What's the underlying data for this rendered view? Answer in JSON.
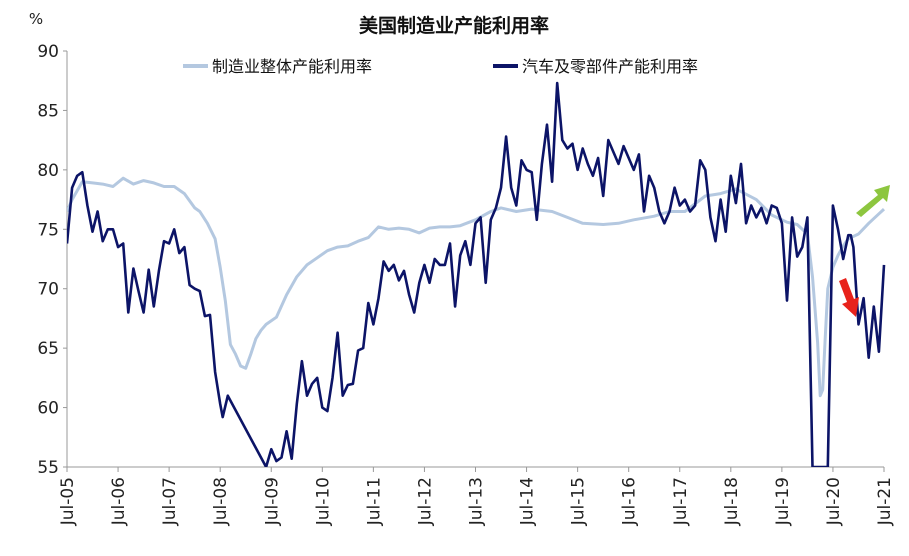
{
  "chart_data": {
    "type": "line",
    "title": "美国制造业产能利用率",
    "y_unit": "%",
    "ylim": [
      55,
      90
    ],
    "y_ticks": [
      55,
      60,
      65,
      70,
      75,
      80,
      85,
      90
    ],
    "x_range": [
      2005.5,
      2021.5
    ],
    "x_tick_labels": [
      "Jul-05",
      "Jul-06",
      "Jul-07",
      "Jul-08",
      "Jul-09",
      "Jul-10",
      "Jul-11",
      "Jul-12",
      "Jul-13",
      "Jul-14",
      "Jul-15",
      "Jul-16",
      "Jul-17",
      "Jul-18",
      "Jul-19",
      "Jul-20",
      "Jul-21"
    ],
    "x_tick_values": [
      2005.5,
      2006.5,
      2007.5,
      2008.5,
      2009.5,
      2010.5,
      2011.5,
      2012.5,
      2013.5,
      2014.5,
      2015.5,
      2016.5,
      2017.5,
      2018.5,
      2019.5,
      2020.5,
      2021.5
    ],
    "legend_position": "top",
    "series": [
      {
        "name": "制造业整体产能利用率",
        "color": "#b4c8e0",
        "x": [
          2005.5,
          2005.6,
          2005.8,
          2006.0,
          2006.2,
          2006.4,
          2006.6,
          2006.8,
          2007.0,
          2007.2,
          2007.4,
          2007.6,
          2007.8,
          2008.0,
          2008.1,
          2008.25,
          2008.4,
          2008.5,
          2008.6,
          2008.7,
          2008.8,
          2008.9,
          2009.0,
          2009.1,
          2009.2,
          2009.3,
          2009.4,
          2009.6,
          2009.8,
          2010.0,
          2010.2,
          2010.4,
          2010.6,
          2010.8,
          2011.0,
          2011.2,
          2011.4,
          2011.6,
          2011.8,
          2012.0,
          2012.2,
          2012.4,
          2012.6,
          2012.8,
          2013.0,
          2013.2,
          2013.5,
          2013.8,
          2014.0,
          2014.3,
          2014.6,
          2015.0,
          2015.3,
          2015.6,
          2016.0,
          2016.3,
          2016.6,
          2017.0,
          2017.3,
          2017.6,
          2018.0,
          2018.3,
          2018.6,
          2019.0,
          2019.3,
          2019.6,
          2019.8,
          2020.0,
          2020.1,
          2020.2,
          2020.25,
          2020.3,
          2020.35,
          2020.4,
          2020.5,
          2020.6,
          2020.7,
          2020.8,
          2021.0,
          2021.2,
          2021.4,
          2021.5
        ],
        "values": [
          76.5,
          77.5,
          79.0,
          78.9,
          78.8,
          78.6,
          79.3,
          78.8,
          79.1,
          78.9,
          78.6,
          78.6,
          78.0,
          76.8,
          76.5,
          75.5,
          74.2,
          71.8,
          69.0,
          65.3,
          64.5,
          63.5,
          63.3,
          64.5,
          65.8,
          66.5,
          67.0,
          67.6,
          69.5,
          71.0,
          72.0,
          72.6,
          73.2,
          73.5,
          73.6,
          74.0,
          74.3,
          75.2,
          75.0,
          75.1,
          75.0,
          74.7,
          75.1,
          75.2,
          75.2,
          75.3,
          75.8,
          76.5,
          76.8,
          76.5,
          76.7,
          76.5,
          76.0,
          75.5,
          75.4,
          75.5,
          75.8,
          76.1,
          76.5,
          76.5,
          77.8,
          78.0,
          78.4,
          77.5,
          76.2,
          75.6,
          75.4,
          74.6,
          71.0,
          65.5,
          61.0,
          61.5,
          66.0,
          70.0,
          71.8,
          72.8,
          73.6,
          74.2,
          74.6,
          75.5,
          76.3,
          76.7
        ]
      },
      {
        "name": "汽车及零部件产能利用率",
        "color": "#0c1467",
        "x": [
          2005.5,
          2005.6,
          2005.7,
          2005.8,
          2005.9,
          2006.0,
          2006.1,
          2006.2,
          2006.3,
          2006.4,
          2006.5,
          2006.6,
          2006.7,
          2006.8,
          2006.9,
          2007.0,
          2007.1,
          2007.2,
          2007.3,
          2007.4,
          2007.5,
          2007.6,
          2007.7,
          2007.8,
          2007.9,
          2008.0,
          2008.1,
          2008.2,
          2008.3,
          2008.4,
          2008.5,
          2008.55,
          2008.65,
          2009.4,
          2009.5,
          2009.6,
          2009.7,
          2009.8,
          2009.9,
          2010.0,
          2010.1,
          2010.2,
          2010.3,
          2010.4,
          2010.5,
          2010.6,
          2010.7,
          2010.8,
          2010.9,
          2011.0,
          2011.1,
          2011.2,
          2011.3,
          2011.4,
          2011.5,
          2011.6,
          2011.7,
          2011.8,
          2011.9,
          2012.0,
          2012.1,
          2012.2,
          2012.3,
          2012.4,
          2012.5,
          2012.6,
          2012.7,
          2012.8,
          2012.9,
          2013.0,
          2013.1,
          2013.2,
          2013.3,
          2013.4,
          2013.5,
          2013.6,
          2013.7,
          2013.8,
          2013.9,
          2014.0,
          2014.1,
          2014.2,
          2014.3,
          2014.4,
          2014.5,
          2014.6,
          2014.7,
          2014.8,
          2014.9,
          2015.0,
          2015.1,
          2015.2,
          2015.3,
          2015.4,
          2015.5,
          2015.6,
          2015.7,
          2015.8,
          2015.9,
          2016.0,
          2016.1,
          2016.2,
          2016.3,
          2016.4,
          2016.5,
          2016.6,
          2016.7,
          2016.8,
          2016.9,
          2017.0,
          2017.1,
          2017.2,
          2017.3,
          2017.4,
          2017.5,
          2017.6,
          2017.7,
          2017.8,
          2017.9,
          2018.0,
          2018.1,
          2018.2,
          2018.3,
          2018.4,
          2018.5,
          2018.6,
          2018.7,
          2018.8,
          2018.9,
          2019.0,
          2019.1,
          2019.2,
          2019.3,
          2019.4,
          2019.5,
          2019.6,
          2019.7,
          2019.8,
          2019.9,
          2020.0,
          2020.1,
          2020.15,
          2020.4,
          2020.5,
          2020.6,
          2020.7,
          2020.8,
          2020.85,
          2020.9,
          2021.0,
          2021.1,
          2021.2,
          2021.3,
          2021.4,
          2021.5
        ],
        "values": [
          73.8,
          78.5,
          79.5,
          79.8,
          77.0,
          74.8,
          76.5,
          74.0,
          75.0,
          75.0,
          73.5,
          73.8,
          68.0,
          71.7,
          69.8,
          68.0,
          71.6,
          68.5,
          71.5,
          74.0,
          73.8,
          75.0,
          73.0,
          73.5,
          70.3,
          70.0,
          69.8,
          67.7,
          67.8,
          63.0,
          60.3,
          59.2,
          61.0,
          55.0,
          56.5,
          55.5,
          55.8,
          58.0,
          55.7,
          60.3,
          63.9,
          61.0,
          62.0,
          62.5,
          60.0,
          59.7,
          62.5,
          66.3,
          61.0,
          61.9,
          62.0,
          64.8,
          65.0,
          68.8,
          67.0,
          69.2,
          72.3,
          71.5,
          72.0,
          70.7,
          71.5,
          69.5,
          68.0,
          70.5,
          72.0,
          70.5,
          72.5,
          72.0,
          72.0,
          73.8,
          68.5,
          72.8,
          74.0,
          72.0,
          75.5,
          76.0,
          70.5,
          75.8,
          76.8,
          78.5,
          82.8,
          78.5,
          77.0,
          80.8,
          80.0,
          79.8,
          75.8,
          80.5,
          83.8,
          79.0,
          87.3,
          82.5,
          81.8,
          82.2,
          80.0,
          81.8,
          80.5,
          79.5,
          81.0,
          77.8,
          82.5,
          81.5,
          80.5,
          82.0,
          81.0,
          80.0,
          81.3,
          76.5,
          79.5,
          78.5,
          76.5,
          75.5,
          76.5,
          78.5,
          77.0,
          77.5,
          76.5,
          77.0,
          80.8,
          80.0,
          76.0,
          74.0,
          77.5,
          74.8,
          79.5,
          77.2,
          80.5,
          75.5,
          77.0,
          76.0,
          76.8,
          75.5,
          77.0,
          76.8,
          75.5,
          69.0,
          76.0,
          72.7,
          73.5,
          76.0,
          55.0,
          55.0,
          55.0,
          77.0,
          75.0,
          72.5,
          74.5,
          74.5,
          73.5,
          67.0,
          69.2,
          64.2,
          68.5,
          64.7,
          72.0
        ]
      }
    ],
    "arrows": [
      {
        "direction": "up",
        "color": "#8dc63f"
      },
      {
        "direction": "down",
        "color": "#e8221b"
      }
    ]
  }
}
